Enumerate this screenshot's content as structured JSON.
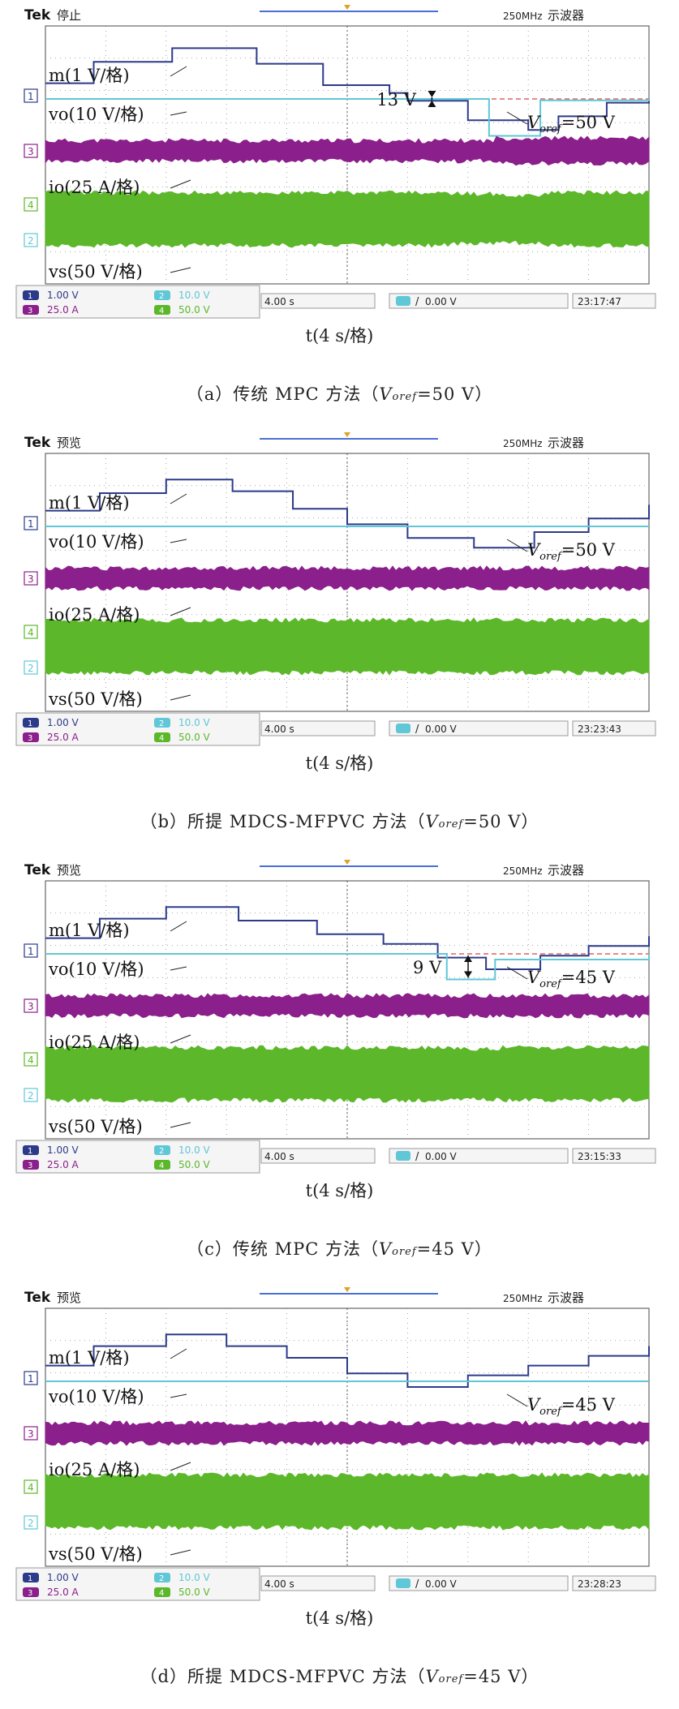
{
  "scope_ui": {
    "brand": "Tek",
    "mode_text": [
      "停止",
      "预览",
      "预览",
      "预览"
    ],
    "bandwidth": "250MHz",
    "device_name": "示波器",
    "channel_markers": [
      "1",
      "3",
      "4",
      "2"
    ],
    "ch1_scale": "1.00 V",
    "ch2_scale": "10.0 V",
    "ch3_scale": "25.0 A",
    "ch4_scale": "50.0 V",
    "timebase": "4.00 s",
    "trigger_level": "0.00 V"
  },
  "panels": [
    {
      "caption_prefix": "（a）传统 MPC 方法（",
      "vref_symbol": "V",
      "vref_sub": "oref",
      "vref_value": "=50 V）",
      "vref_label": "=50 V",
      "clock": "23:17:47",
      "xlabel": "t(4 s/格)",
      "annotation": "13 V"
    },
    {
      "caption_prefix": "（b）所提 MDCS-MFPVC 方法（",
      "vref_symbol": "V",
      "vref_sub": "oref",
      "vref_value": "=50 V）",
      "vref_label": "=50 V",
      "clock": "23:23:43",
      "xlabel": "t(4 s/格)",
      "annotation": ""
    },
    {
      "caption_prefix": "（c）传统 MPC 方法（",
      "vref_symbol": "V",
      "vref_sub": "oref",
      "vref_value": "=45 V）",
      "vref_label": "=45 V",
      "clock": "23:15:33",
      "xlabel": "t(4 s/格)",
      "annotation": "9 V"
    },
    {
      "caption_prefix": "（d）所提 MDCS-MFPVC 方法（",
      "vref_symbol": "V",
      "vref_sub": "oref",
      "vref_value": "=45 V）",
      "vref_label": "=45 V",
      "clock": "23:28:23",
      "xlabel": "t(4 s/格)",
      "annotation": ""
    }
  ],
  "trace_labels": {
    "m": "m(1 V/格)",
    "vo": "vo(10 V/格)",
    "io": "io(25 A/格)",
    "vs": "vs(50 V/格)"
  },
  "colors": {
    "m_trace": "#2c3a8a",
    "vo_trace": "#5fc7d6",
    "io_trace": "#8b1f8b",
    "vs_trace": "#5cb82a",
    "ref_line": "#e06060",
    "grid": "#8a8a8a"
  },
  "chart_data": [
    {
      "type": "line",
      "title": "（a）传统 MPC 方法（Voref=50 V）",
      "xlabel": "t(4 s/格)",
      "x_divisions": 10,
      "series": [
        {
          "name": "m(1 V/格)",
          "x": [
            0,
            0.8,
            2.1,
            3.5,
            4.6,
            5.7,
            6.0,
            7.0,
            8.0,
            8.5,
            9.3,
            10
          ],
          "values": [
            4.8,
            5.35,
            5.7,
            5.3,
            4.75,
            4.55,
            4.35,
            3.85,
            3.6,
            3.95,
            4.3,
            4.35
          ]
        },
        {
          "name": "vo(10 V/格)",
          "x": [
            0,
            6.0,
            7.3,
            7.35,
            8.1,
            8.2,
            10
          ],
          "values": [
            50,
            50,
            50,
            37,
            37,
            49.5,
            50
          ]
        },
        {
          "name": "io(25 A/格)",
          "x": [
            0,
            7.3,
            7.45,
            10
          ],
          "values": [
            1.0,
            1.0,
            1.35,
            1.35
          ]
        },
        {
          "name": "vs(50 V/格)",
          "x": [
            0,
            6.3,
            6.5,
            7.3,
            7.4,
            8.1,
            8.2,
            10
          ],
          "values": [
            1,
            1,
            0.95,
            0.95,
            0.9,
            0.9,
            1,
            1
          ]
        }
      ],
      "annotations": [
        "13 V",
        "Voref=50 V"
      ]
    },
    {
      "type": "line",
      "title": "（b）所提 MDCS-MFPVC 方法（Voref=50 V）",
      "xlabel": "t(4 s/格)",
      "x_divisions": 10,
      "series": [
        {
          "name": "m(1 V/格)",
          "x": [
            0,
            0.9,
            2.0,
            3.1,
            4.1,
            5.0,
            6.0,
            7.1,
            8.1,
            9.0,
            10
          ],
          "values": [
            4.8,
            5.25,
            5.6,
            5.3,
            4.85,
            4.45,
            4.1,
            3.85,
            4.25,
            4.6,
            4.95
          ]
        },
        {
          "name": "vo(10 V/格)",
          "x": [
            0,
            10
          ],
          "values": [
            50,
            50
          ]
        },
        {
          "name": "io(25 A/格)",
          "x": [
            0,
            10
          ],
          "values": [
            1,
            1
          ]
        },
        {
          "name": "vs(50 V/格)",
          "x": [
            0,
            10
          ],
          "values": [
            1,
            1
          ]
        }
      ],
      "annotations": [
        "Voref=50 V"
      ]
    },
    {
      "type": "line",
      "title": "（c）传统 MPC 方法（Voref=45 V）",
      "xlabel": "t(4 s/格)",
      "x_divisions": 10,
      "series": [
        {
          "name": "m(1 V/格)",
          "x": [
            0,
            0.9,
            2.0,
            3.2,
            4.5,
            5.6,
            6.5,
            7.3,
            8.2,
            9.0,
            10
          ],
          "values": [
            4.8,
            5.3,
            5.6,
            5.25,
            4.9,
            4.65,
            4.3,
            4.0,
            4.35,
            4.6,
            4.85
          ]
        },
        {
          "name": "vo(10 V/格)",
          "x": [
            0,
            6.6,
            6.65,
            7.4,
            7.45,
            10
          ],
          "values": [
            45,
            45,
            36,
            36,
            43,
            45
          ]
        },
        {
          "name": "io(25 A/格)",
          "x": [
            0,
            10
          ],
          "values": [
            1,
            1
          ]
        },
        {
          "name": "vs(50 V/格)",
          "x": [
            0,
            6.6,
            6.7,
            7.4,
            7.5,
            10
          ],
          "values": [
            1,
            1,
            0.95,
            0.95,
            1,
            1
          ]
        }
      ],
      "annotations": [
        "9 V",
        "Voref=45 V"
      ]
    },
    {
      "type": "line",
      "title": "（d）所提 MDCS-MFPVC 方法（Voref=45 V）",
      "xlabel": "t(4 s/格)",
      "x_divisions": 10,
      "series": [
        {
          "name": "m(1 V/格)",
          "x": [
            0,
            0.8,
            2.0,
            3.0,
            4.0,
            5.0,
            6.0,
            7.0,
            8.0,
            9.0,
            10
          ],
          "values": [
            4.8,
            5.3,
            5.6,
            5.3,
            5.0,
            4.6,
            4.25,
            4.55,
            4.8,
            5.05,
            5.3
          ]
        },
        {
          "name": "vo(10 V/格)",
          "x": [
            0,
            10
          ],
          "values": [
            45,
            45
          ]
        },
        {
          "name": "io(25 A/格)",
          "x": [
            0,
            10
          ],
          "values": [
            1,
            1
          ]
        },
        {
          "name": "vs(50 V/格)",
          "x": [
            0,
            10
          ],
          "values": [
            1,
            1
          ]
        }
      ],
      "annotations": [
        "Voref=45 V"
      ]
    }
  ]
}
